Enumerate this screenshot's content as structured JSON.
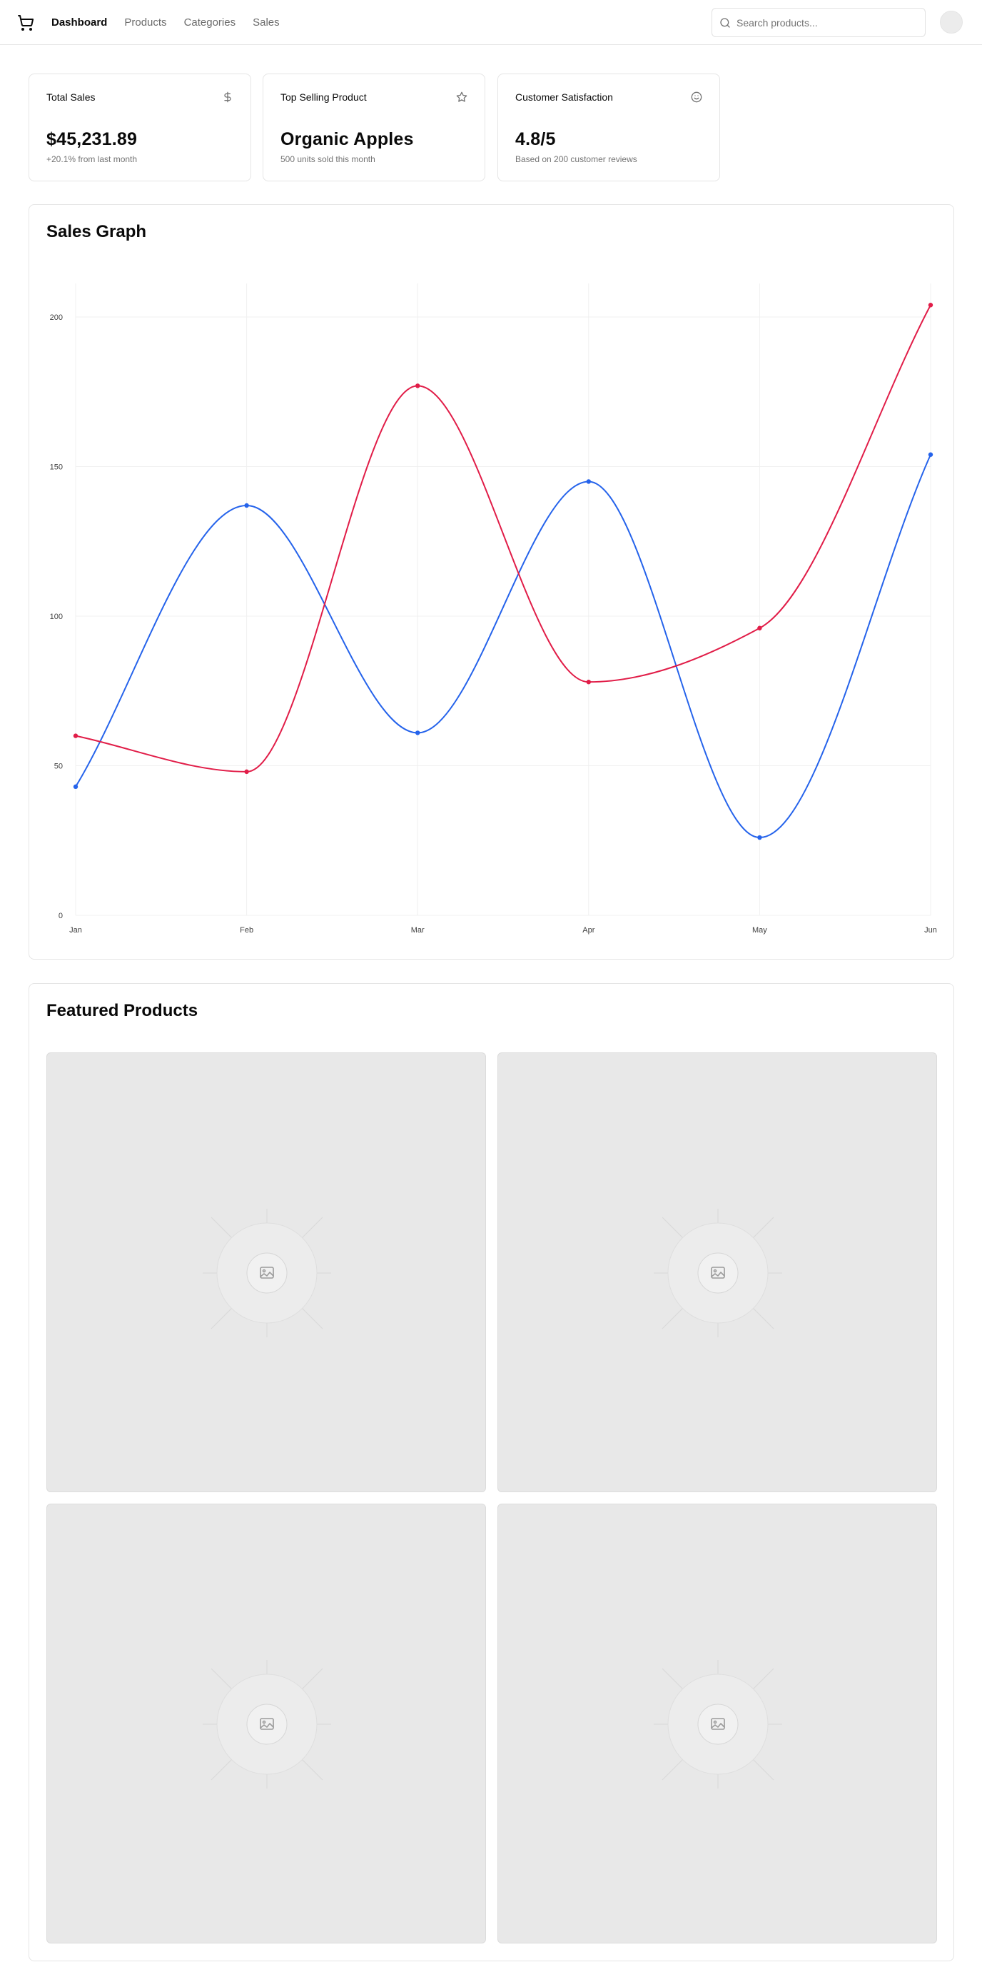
{
  "header": {
    "logo_icon": "shopping-cart-icon",
    "nav": [
      {
        "label": "Dashboard",
        "active": true
      },
      {
        "label": "Products",
        "active": false
      },
      {
        "label": "Categories",
        "active": false
      },
      {
        "label": "Sales",
        "active": false
      }
    ],
    "search": {
      "placeholder": "Search products...",
      "value": "",
      "icon": "search-icon"
    }
  },
  "stats": [
    {
      "title": "Total Sales",
      "value": "$45,231.89",
      "subtitle": "+20.1% from last month",
      "icon": "dollar-sign-icon"
    },
    {
      "title": "Top Selling Product",
      "value": "Organic Apples",
      "subtitle": "500 units sold this month",
      "icon": "star-icon"
    },
    {
      "title": "Customer Satisfaction",
      "value": "4.8/5",
      "subtitle": "Based on 200 customer reviews",
      "icon": "smile-icon"
    }
  ],
  "sales_graph": {
    "title": "Sales Graph"
  },
  "chart_data": {
    "type": "line",
    "title": "",
    "categories": [
      "Jan",
      "Feb",
      "Mar",
      "Apr",
      "May",
      "Jun"
    ],
    "ylim": [
      0,
      200
    ],
    "yticks": [
      0,
      50,
      100,
      150,
      200
    ],
    "grid": true,
    "smooth": true,
    "series": [
      {
        "color": "#2563eb",
        "values": [
          43,
          137,
          61,
          145,
          26,
          154
        ]
      },
      {
        "color": "#e11d48",
        "values": [
          60,
          48,
          177,
          78,
          96,
          204
        ]
      }
    ]
  },
  "featured": {
    "title": "Featured Products",
    "items": [
      {
        "image": "image-placeholder-icon"
      },
      {
        "image": "image-placeholder-icon"
      },
      {
        "image": "image-placeholder-icon"
      },
      {
        "image": "image-placeholder-icon"
      }
    ]
  }
}
